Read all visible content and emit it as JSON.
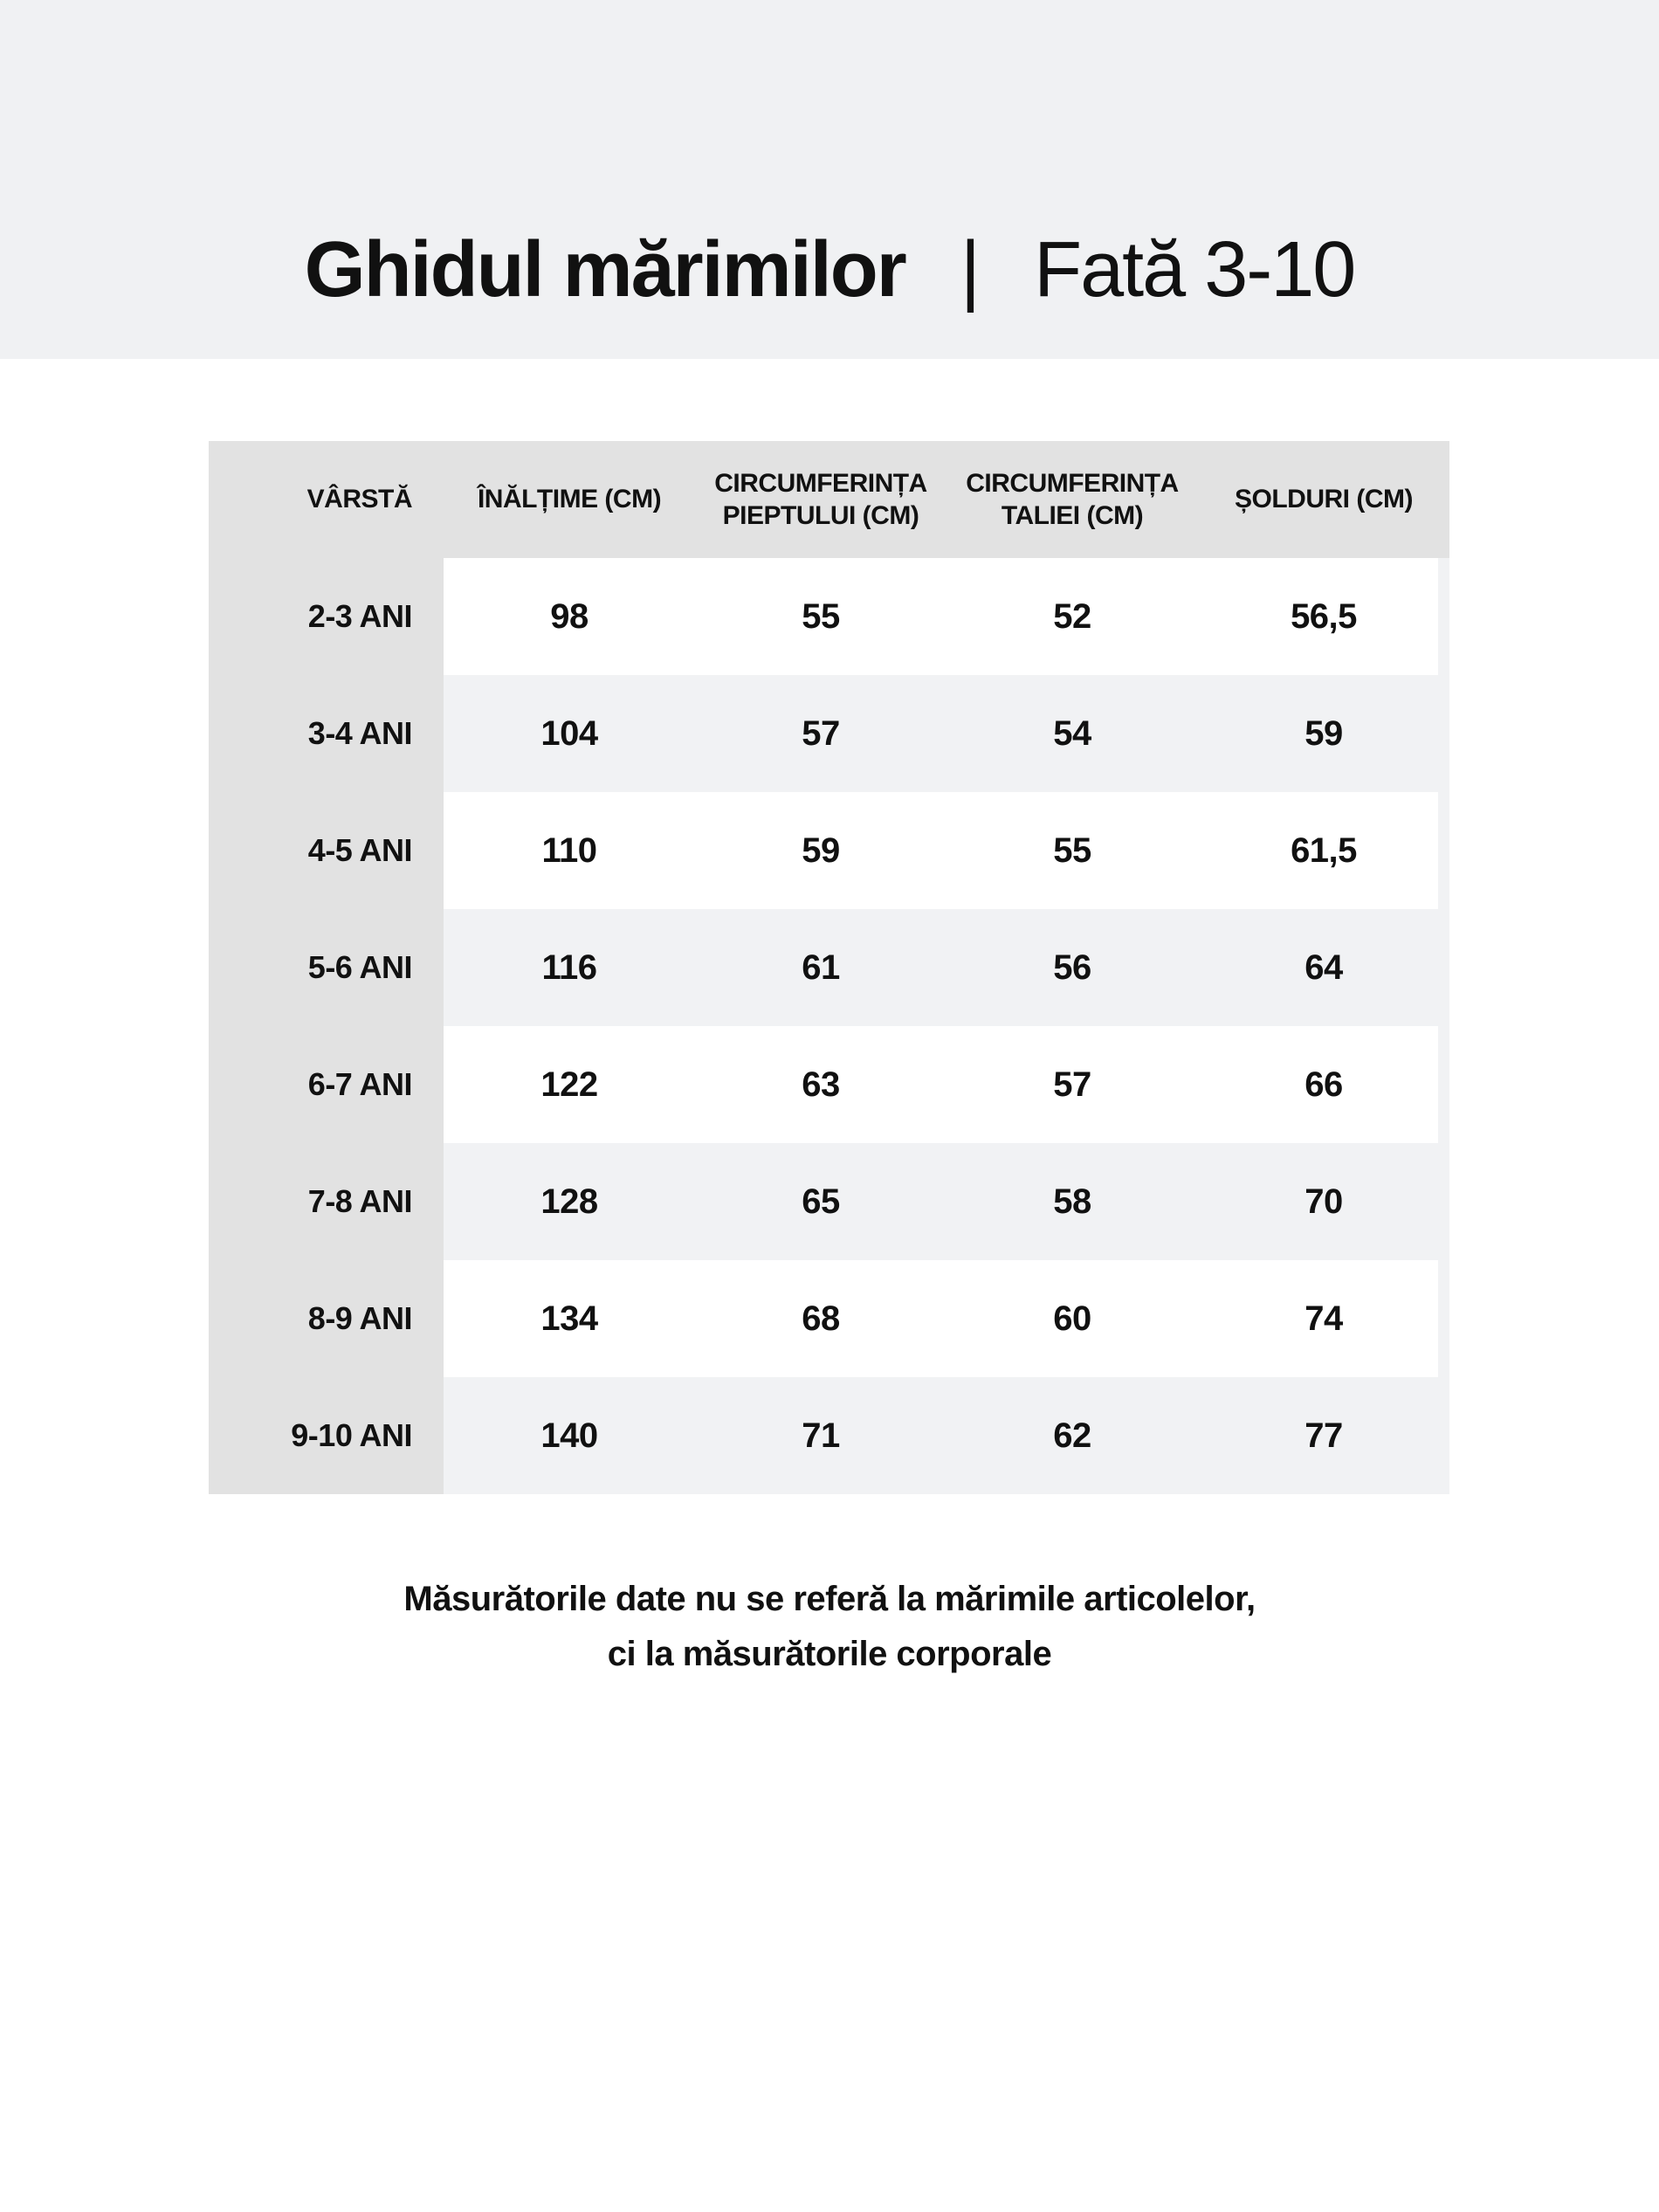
{
  "colors": {
    "banner-bg": "#f0f1f3",
    "header-cell-bg": "#e2e2e2",
    "alt-row-bg": "#f1f2f4",
    "row-bg": "#ffffff",
    "text": "#111111"
  },
  "header": {
    "title_bold": "Ghidul mărimilor",
    "separator": "|",
    "title_segment": "Fată 3-10"
  },
  "table": {
    "headers": [
      "VÂRSTĂ",
      "ÎNĂLȚIME (CM)",
      "CIRCUMFERINȚA PIEPTULUI (CM)",
      "CIRCUMFERINȚA TALIEI (CM)",
      "ȘOLDURI (CM)"
    ],
    "rows": [
      [
        "2-3 ANI",
        "98",
        "55",
        "52",
        "56,5"
      ],
      [
        "3-4 ANI",
        "104",
        "57",
        "54",
        "59"
      ],
      [
        "4-5 ANI",
        "110",
        "59",
        "55",
        "61,5"
      ],
      [
        "5-6 ANI",
        "116",
        "61",
        "56",
        "64"
      ],
      [
        "6-7 ANI",
        "122",
        "63",
        "57",
        "66"
      ],
      [
        "7-8 ANI",
        "128",
        "65",
        "58",
        "70"
      ],
      [
        "8-9 ANI",
        "134",
        "68",
        "60",
        "74"
      ],
      [
        "9-10 ANI",
        "140",
        "71",
        "62",
        "77"
      ]
    ]
  },
  "footer": {
    "line1": "Măsurătorile date nu se referă la mărimile articolelor,",
    "line2": "ci la măsurătorile corporale"
  }
}
